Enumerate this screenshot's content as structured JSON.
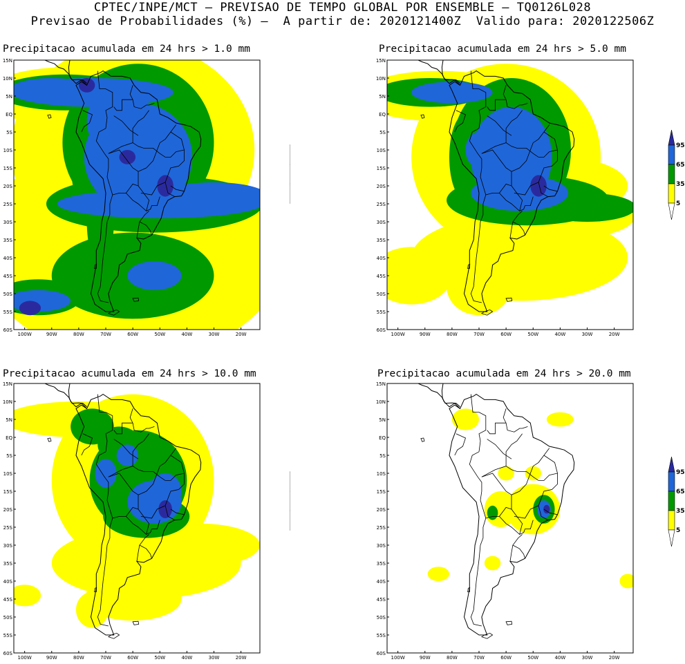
{
  "header": {
    "line1": "CPTEC/INPE/MCT — PREVISAO DE TEMPO GLOBAL POR ENSEMBLE — TQ0126L028",
    "line2": "Previsao de Probabilidades (%) —  A partir de: 2020121400Z  Valido para: 2020122506Z"
  },
  "axes": {
    "lat_labels": [
      "15N",
      "10N",
      "5N",
      "EQ",
      "5S",
      "10S",
      "15S",
      "20S",
      "25S",
      "30S",
      "35S",
      "40S",
      "45S",
      "50S",
      "55S",
      "60S"
    ],
    "lon_labels": [
      "100W",
      "90W",
      "80W",
      "70W",
      "60W",
      "50W",
      "40W",
      "30W",
      "20W"
    ]
  },
  "legend": {
    "levels": [
      "95",
      "65",
      "35",
      "5"
    ],
    "colors": {
      "yellow": "#ffff00",
      "green": "#009900",
      "blue": "#1f66d9",
      "navy": "#2a2a9e"
    }
  },
  "panels": [
    {
      "title": "Precipitacao acumulada em 24 hrs > 1.0 mm"
    },
    {
      "title": "Precipitacao acumulada em 24 hrs > 5.0 mm"
    },
    {
      "title": "Precipitacao acumulada em 24 hrs > 10.0 mm"
    },
    {
      "title": "Precipitacao acumulada em 24 hrs > 20.0 mm"
    }
  ]
}
